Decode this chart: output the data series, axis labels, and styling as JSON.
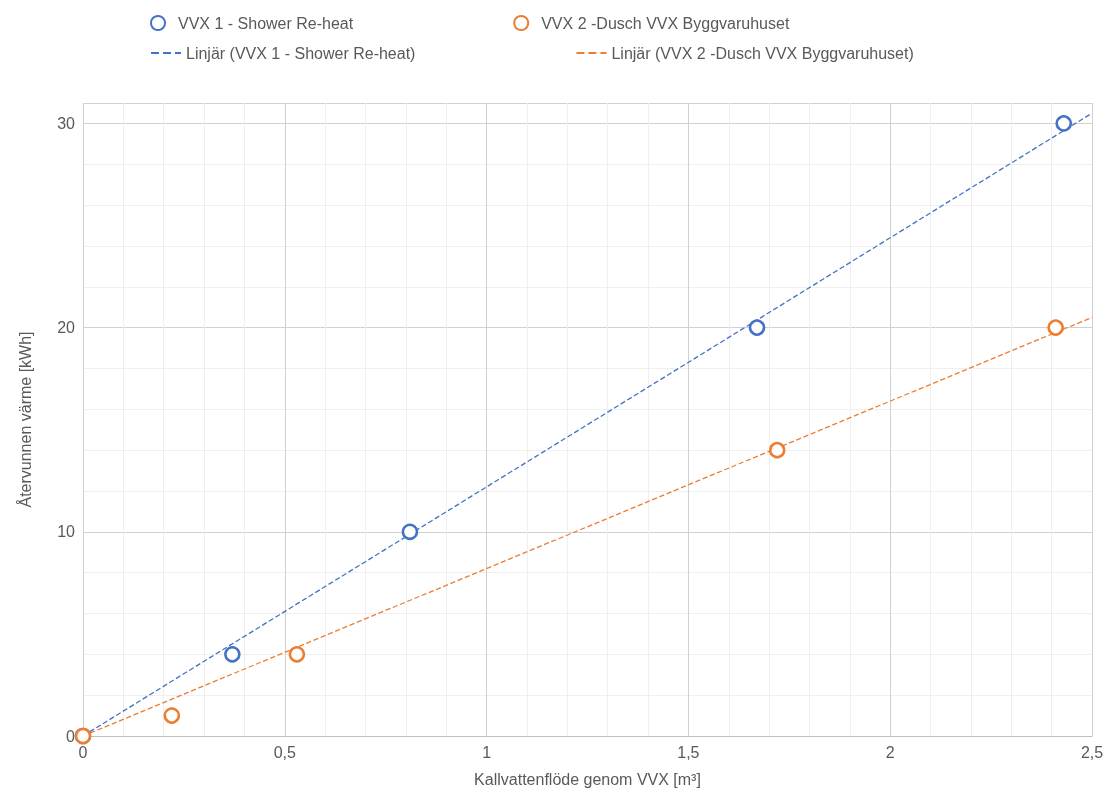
{
  "chart_data": {
    "type": "scatter",
    "xlabel": "Kallvattenflöde genom VVX [m³]",
    "ylabel": "Återvunnen värme [kWh]",
    "xlim": [
      0,
      2.5
    ],
    "xticks": [
      0,
      {
        "value": 0.5,
        "label": "0,5"
      },
      1,
      {
        "value": 1.5,
        "label": "1,5"
      },
      2,
      {
        "value": 2.5,
        "label": "2,5"
      }
    ],
    "ylim": [
      0,
      31
    ],
    "yticks": [
      0,
      10,
      20,
      30
    ],
    "grid": true,
    "legend": "top",
    "marker": "circle",
    "series": [
      {
        "name": "VVX 1 - Shower Re-heat",
        "color": "#4472c4",
        "x": [
          0,
          0.37,
          0.81,
          1.67,
          2.43
        ],
        "values": [
          0,
          4,
          10,
          20,
          30
        ]
      },
      {
        "name": "VVX 2 -Dusch VVX Byggvaruhuset",
        "color": "#ed7d31",
        "x": [
          0,
          0.22,
          0.53,
          1.72,
          2.41
        ],
        "values": [
          0,
          1,
          4,
          14,
          20
        ]
      },
      {
        "name": "Linjär (VVX 1 - Shower Re-heat)",
        "type": "line",
        "line_style": "dashed",
        "marker": "none",
        "color": "#4472c4",
        "x": [
          0,
          2.5
        ],
        "values": [
          0,
          30.5
        ]
      },
      {
        "name": "Linjär (VVX 2 -Dusch VVX Byggvaruhuset)",
        "type": "line",
        "line_style": "dashed",
        "marker": "none",
        "color": "#ed7d31",
        "x": [
          0,
          2.5
        ],
        "values": [
          0,
          20.5
        ]
      }
    ]
  }
}
